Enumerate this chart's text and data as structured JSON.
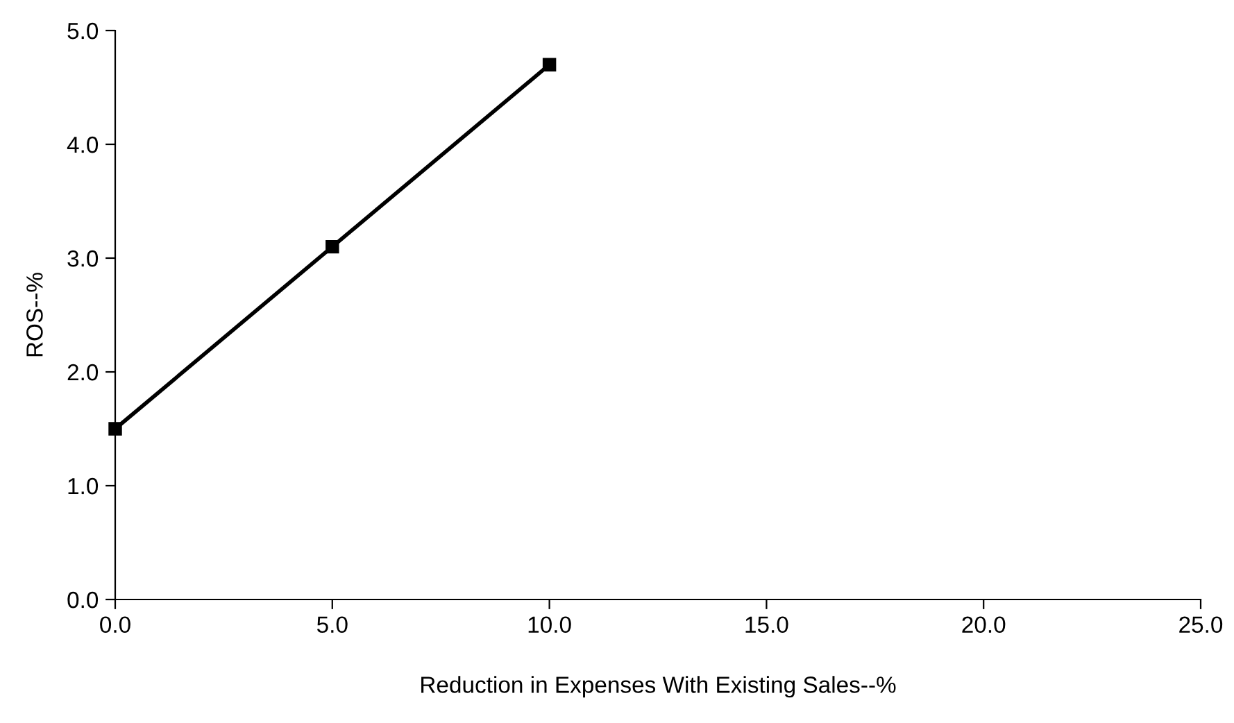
{
  "chart_data": {
    "type": "line",
    "xlabel": "Reduction in Expenses With Existing Sales--%",
    "ylabel": "ROS--%",
    "x": [
      0,
      5,
      10
    ],
    "series": [
      {
        "color": "#000000",
        "values": [
          1.5,
          3.1,
          4.7
        ]
      }
    ],
    "xlim": [
      0,
      25
    ],
    "xticks": [
      {
        "value": 0,
        "label": "0.0"
      },
      {
        "value": 5,
        "label": "5.0"
      },
      {
        "value": 10,
        "label": "10.0"
      },
      {
        "value": 15,
        "label": "15.0"
      },
      {
        "value": 20,
        "label": "20.0"
      },
      {
        "value": 25,
        "label": "25.0"
      }
    ],
    "ylim": [
      0,
      5
    ],
    "yticks": [
      {
        "value": 0,
        "label": "0.0"
      },
      {
        "value": 1,
        "label": "1.0"
      },
      {
        "value": 2,
        "label": "2.0"
      },
      {
        "value": 3,
        "label": "3.0"
      },
      {
        "value": 4,
        "label": "4.0"
      },
      {
        "value": 5,
        "label": "5.0"
      }
    ],
    "marker": "square",
    "line_style": "solid",
    "grid": false,
    "legend": false
  }
}
